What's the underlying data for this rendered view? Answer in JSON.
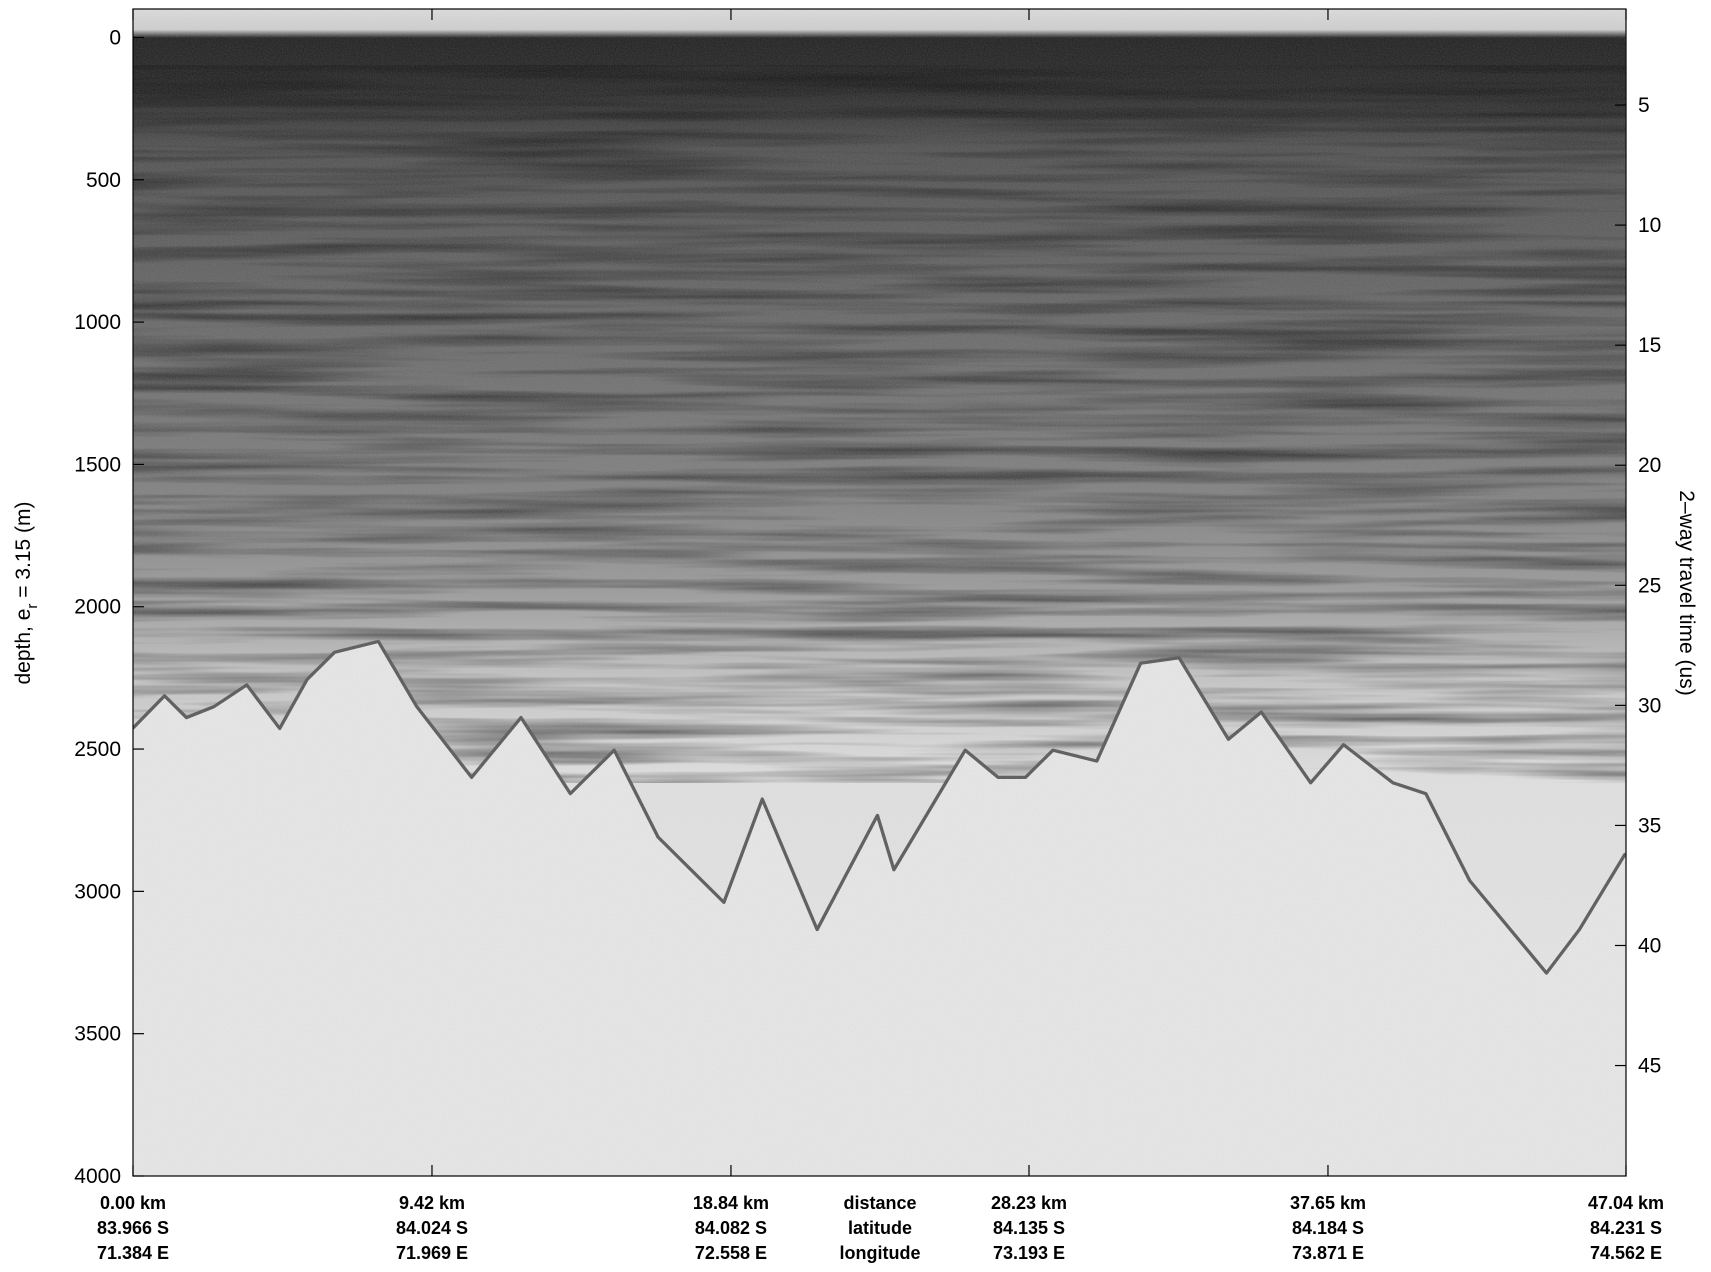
{
  "chart_data": {
    "type": "echogram",
    "ylabel": {
      "main": "depth, e",
      "sub": "r",
      "rest": " = 3.15 (m)"
    },
    "y2label": "2–way travel time (us)",
    "ylim": [
      4000,
      -100
    ],
    "yticks": [
      0,
      500,
      1000,
      1500,
      2000,
      2500,
      3000,
      3500,
      4000
    ],
    "y2lim": [
      49.6,
      1
    ],
    "y2ticks": [
      5,
      10,
      15,
      20,
      25,
      30,
      35,
      40,
      45
    ],
    "xlim": [
      0,
      47.04
    ],
    "xticks": [
      {
        "value": 0,
        "label": "0.00 km"
      },
      {
        "value": 9.42,
        "label": "9.42 km"
      },
      {
        "value": 18.84,
        "label": "18.84 km"
      },
      {
        "value": 28.23,
        "label": "28.23 km"
      },
      {
        "value": 37.65,
        "label": "37.65 km"
      },
      {
        "value": 47.04,
        "label": "47.04 km"
      }
    ],
    "latitudes": [
      "83.966 S",
      "84.024 S",
      "84.082 S",
      "84.135 S",
      "84.184 S",
      "84.231 S"
    ],
    "longitudes": [
      "71.384 E",
      "71.969 E",
      "72.558 E",
      "73.193 E",
      "73.871 E",
      "74.562 E"
    ],
    "row_labels": [
      "distance",
      "latitude",
      "longitude"
    ]
  }
}
